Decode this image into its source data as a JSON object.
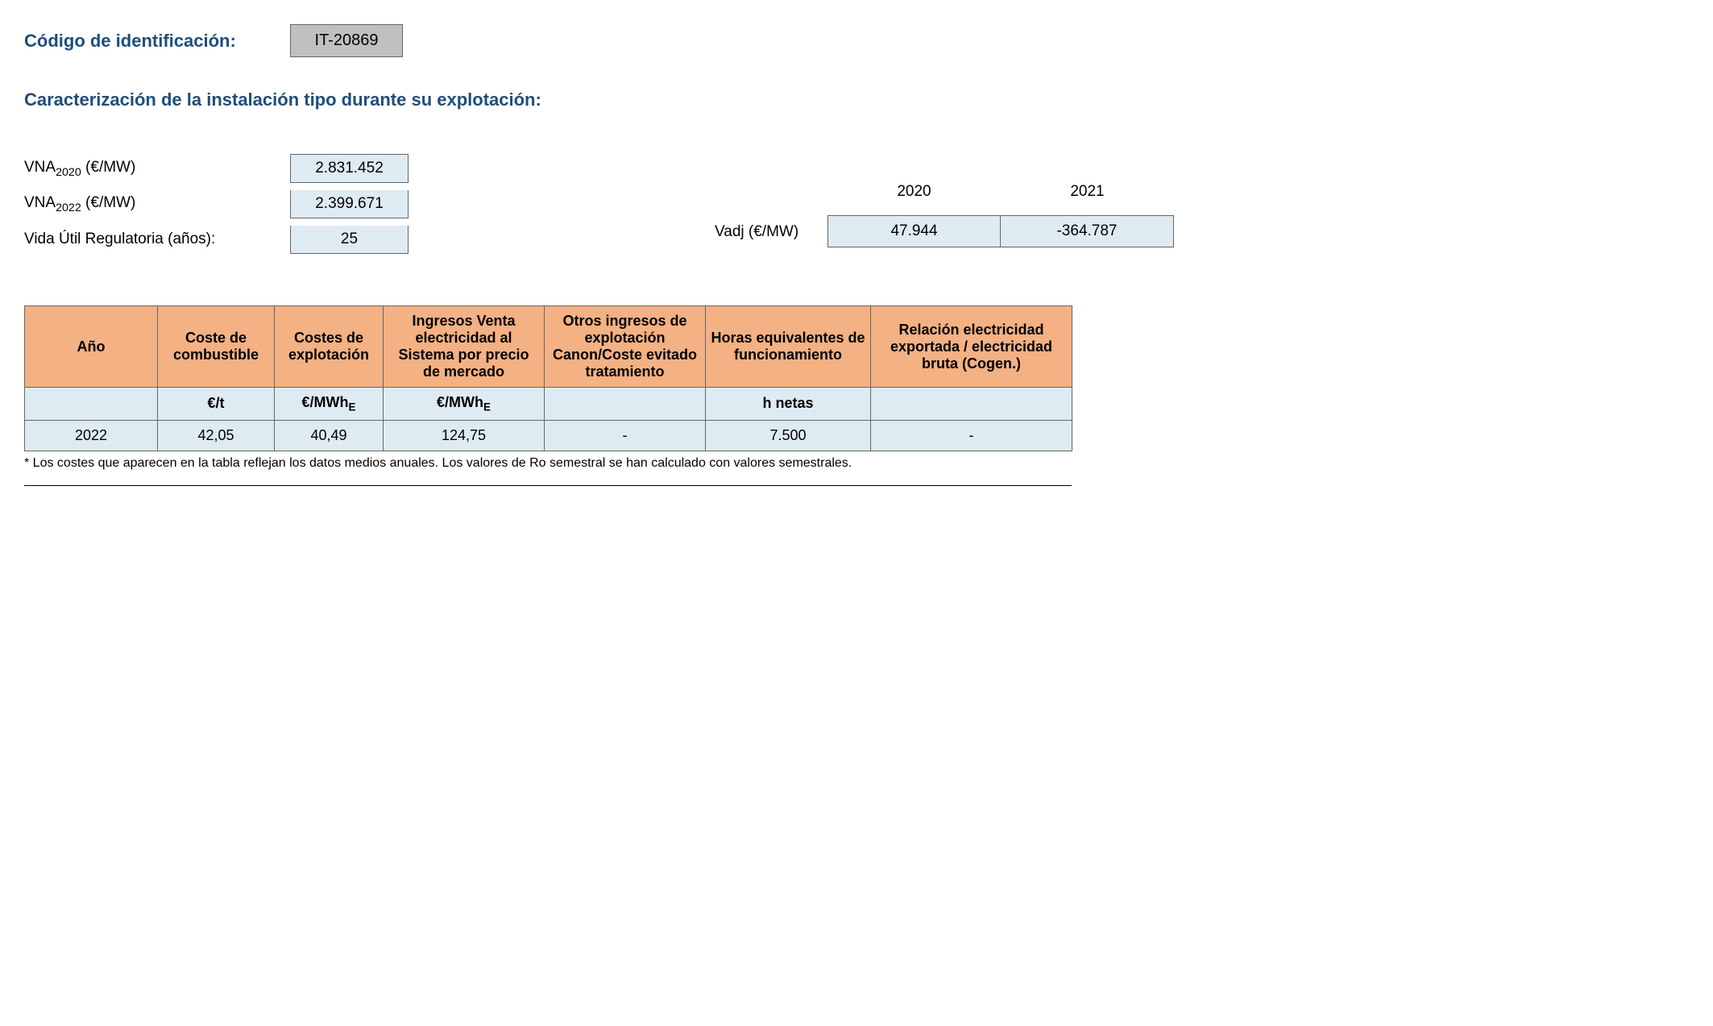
{
  "header": {
    "code_label": "Código de identificación:",
    "code_value": "IT-20869",
    "section_title": "Caracterización de la instalación tipo durante su explotación:"
  },
  "params": {
    "vna2020": {
      "label_prefix": "VNA",
      "label_sub": "2020",
      "label_suffix": " (€/MW)",
      "value": "2.831.452"
    },
    "vna2022": {
      "label_prefix": "VNA",
      "label_sub": "2022",
      "label_suffix": " (€/MW)",
      "value": "2.399.671"
    },
    "vida": {
      "label": "Vida Útil Regulatoria (años):",
      "value": "25"
    }
  },
  "vadj": {
    "label": "Vadj (€/MW)",
    "cols": [
      {
        "year": "2020",
        "value": "47.944"
      },
      {
        "year": "2021",
        "value": "-364.787"
      }
    ]
  },
  "table": {
    "headers": {
      "c1": "Año",
      "c2": "Coste de combustible",
      "c3": "Costes de explotación",
      "c4": "Ingresos Venta electricidad al Sistema por precio de mercado",
      "c5": "Otros ingresos de explotación Canon/Coste evitado tratamiento",
      "c6": "Horas equivalentes de funcionamiento",
      "c7": "Relación electricidad exportada / electricidad bruta (Cogen.)"
    },
    "units": {
      "c1": "",
      "c2": "€/t",
      "c3_pre": "€/MWh",
      "c3_sub": "E",
      "c4_pre": "€/MWh",
      "c4_sub": "E",
      "c5": "",
      "c6": "h netas",
      "c7": ""
    },
    "row": {
      "c1": "2022",
      "c2": "42,05",
      "c3": "40,49",
      "c4": "124,75",
      "c5": "-",
      "c6": "7.500",
      "c7": "-"
    },
    "col_widths": [
      "165px",
      "145px",
      "135px",
      "200px",
      "200px",
      "205px",
      "250px"
    ],
    "header_bg": "#f4b183",
    "cell_bg": "#deebf2"
  },
  "footnote": "* Los costes que aparecen en la tabla reflejan los datos medios anuales. Los valores de Ro semestral se han calculado con valores semestrales."
}
